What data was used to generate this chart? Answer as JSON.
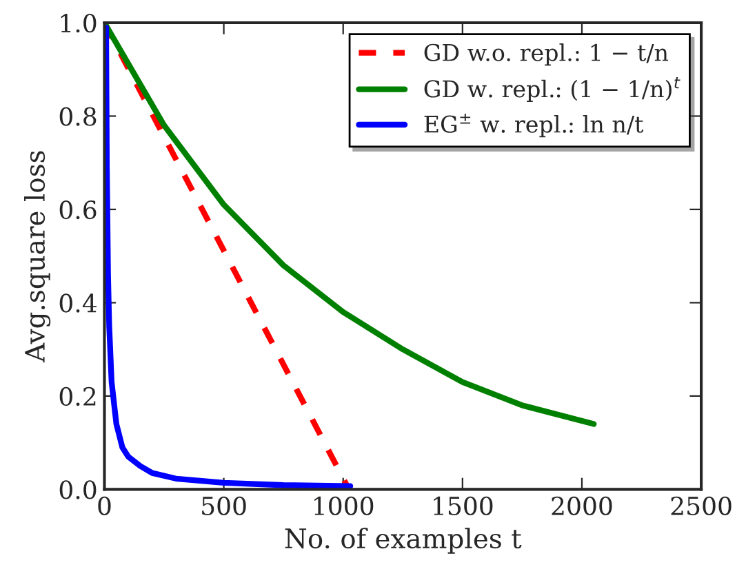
{
  "chart_data": {
    "type": "line",
    "xlabel": "No. of examples t",
    "ylabel": "Avg.square loss",
    "xlim": [
      0,
      2500
    ],
    "xticks": [
      0,
      500,
      1000,
      1500,
      2000,
      2500
    ],
    "ylim": [
      0,
      1
    ],
    "yticks": [
      {
        "value": 0,
        "label": "0.0"
      },
      0.2,
      0.4,
      0.6,
      0.8,
      {
        "value": 1,
        "label": "1.0"
      }
    ],
    "grid": false,
    "legend": "top right",
    "series": [
      {
        "name": "GD w.o. repl.: 1 − t/n",
        "color": "#ff0000",
        "line_style": "dashed",
        "x": [
          0,
          1024
        ],
        "values": [
          1.0,
          0.0
        ]
      },
      {
        "name": "GD w. repl.: (1 − 1/n)$^{t}$",
        "color": "#008000",
        "line_style": "solid",
        "x": [
          0,
          250,
          500,
          750,
          1000,
          1250,
          1500,
          1750,
          2050
        ],
        "values": [
          1.0,
          0.78,
          0.61,
          0.48,
          0.38,
          0.3,
          0.23,
          0.18,
          0.14
        ]
      },
      {
        "name": "EG$^{±}$ w. repl.: ln n/t",
        "color": "#0000ff",
        "line_style": "solid",
        "x": [
          7,
          10,
          15,
          20,
          30,
          50,
          75,
          100,
          150,
          200,
          300,
          500,
          750,
          1030
        ],
        "values": [
          0.99,
          0.69,
          0.46,
          0.35,
          0.23,
          0.14,
          0.09,
          0.07,
          0.05,
          0.035,
          0.023,
          0.014,
          0.009,
          0.007
        ]
      }
    ]
  }
}
